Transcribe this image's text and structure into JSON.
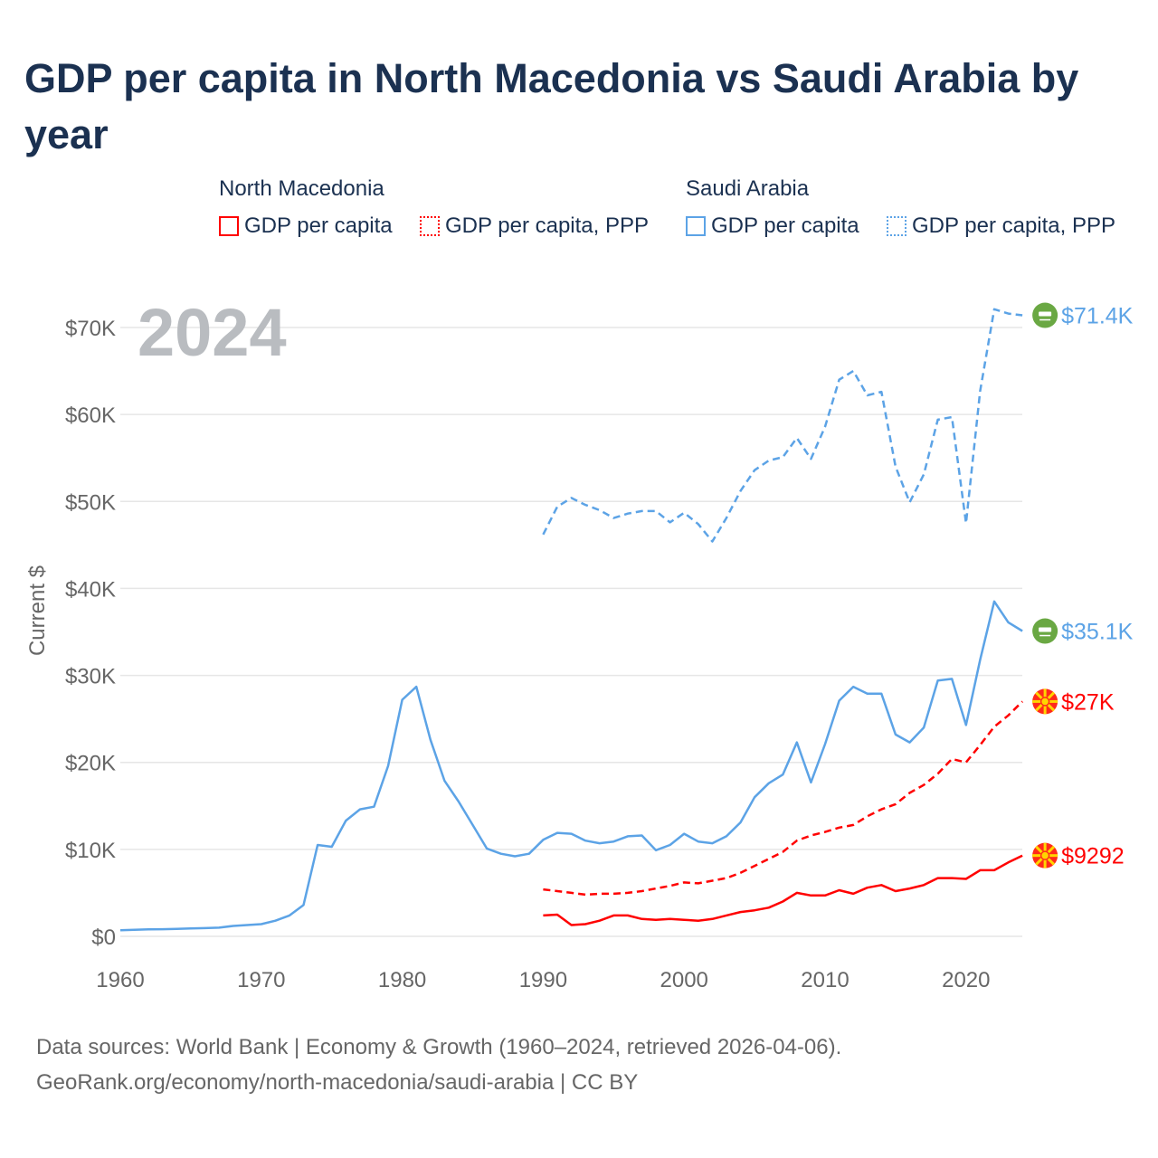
{
  "title": "GDP per capita in North Macedonia vs Saudi Arabia by year",
  "legend": {
    "groups": [
      {
        "country": "North Macedonia",
        "items": [
          "GDP per capita",
          "GDP per capita, PPP"
        ],
        "color": "#ff0000"
      },
      {
        "country": "Saudi Arabia",
        "items": [
          "GDP per capita",
          "GDP per capita, PPP"
        ],
        "color": "#5ca3e6"
      }
    ]
  },
  "year_label": "2024",
  "footer": {
    "line1": "Data sources: World Bank | Economy & Growth (1960–2024, retrieved 2026-04-06).",
    "line2": "GeoRank.org/economy/north-macedonia/saudi-arabia | CC BY"
  },
  "chart_data": {
    "type": "line",
    "title": "GDP per capita in North Macedonia vs Saudi Arabia by year",
    "xlabel": "",
    "ylabel": "Current $",
    "xlim": [
      1960,
      2024
    ],
    "ylim": [
      0,
      70000
    ],
    "x_ticks": [
      1960,
      1970,
      1980,
      1990,
      2000,
      2010,
      2020
    ],
    "x_tick_labels": [
      "1960",
      "1970",
      "1980",
      "1990",
      "2000",
      "2010",
      "2020"
    ],
    "y_ticks": [
      0,
      10000,
      20000,
      30000,
      40000,
      50000,
      60000,
      70000
    ],
    "y_tick_labels": [
      "$0",
      "$10K",
      "$20K",
      "$30K",
      "$40K",
      "$50K",
      "$60K",
      "$70K"
    ],
    "grid": true,
    "legend_position": "top",
    "series": [
      {
        "name": "Saudi Arabia GDP per capita, PPP",
        "color": "#5ca3e6",
        "dash": "dashed",
        "start": 1990,
        "end_label": "$71.4K",
        "flag": "saudi-arabia",
        "values": [
          46200,
          49400,
          50400,
          49600,
          49000,
          48100,
          48600,
          48900,
          48900,
          47600,
          48700,
          47400,
          45400,
          48100,
          51200,
          53600,
          54700,
          55100,
          57300,
          54900,
          58600,
          64000,
          65000,
          62200,
          62600,
          54000,
          49900,
          53100,
          59400,
          59700,
          47500,
          62700,
          72100,
          71600,
          71400
        ]
      },
      {
        "name": "Saudi Arabia GDP per capita",
        "color": "#5ca3e6",
        "dash": "solid",
        "start": 1960,
        "end_label": "$35.1K",
        "flag": "saudi-arabia",
        "values": [
          700,
          750,
          800,
          820,
          850,
          900,
          950,
          1000,
          1200,
          1300,
          1400,
          1800,
          2400,
          3600,
          10500,
          10300,
          13300,
          14600,
          14900,
          19600,
          27200,
          28700,
          22600,
          17900,
          15500,
          12800,
          10100,
          9500,
          9200,
          9500,
          11100,
          11900,
          11800,
          11000,
          10700,
          10900,
          11500,
          11600,
          9900,
          10500,
          11800,
          10900,
          10700,
          11500,
          13100,
          16000,
          17600,
          18600,
          22300,
          17700,
          22100,
          27100,
          28700,
          27900,
          27900,
          23200,
          22300,
          24000,
          29400,
          29600,
          24300,
          31800,
          38500,
          36100,
          35100
        ]
      },
      {
        "name": "North Macedonia GDP per capita, PPP",
        "color": "#ff0000",
        "dash": "dashed",
        "start": 1990,
        "end_label": "$27K",
        "flag": "north-macedonia",
        "values": [
          5400,
          5200,
          5000,
          4800,
          4900,
          4900,
          5000,
          5200,
          5500,
          5800,
          6200,
          6100,
          6400,
          6700,
          7300,
          8100,
          8900,
          9700,
          11000,
          11600,
          12000,
          12500,
          12800,
          13800,
          14600,
          15200,
          16500,
          17400,
          18700,
          20400,
          20000,
          22000,
          24100,
          25400,
          27000
        ]
      },
      {
        "name": "North Macedonia GDP per capita",
        "color": "#ff0000",
        "dash": "solid",
        "start": 1990,
        "end_label": "$9292",
        "flag": "north-macedonia",
        "values": [
          2400,
          2500,
          1300,
          1400,
          1800,
          2400,
          2400,
          2000,
          1900,
          2000,
          1900,
          1800,
          2000,
          2400,
          2800,
          3000,
          3300,
          4000,
          5000,
          4700,
          4700,
          5300,
          4900,
          5600,
          5900,
          5200,
          5500,
          5900,
          6700,
          6700,
          6600,
          7600,
          7600,
          8500,
          9292
        ]
      }
    ]
  }
}
